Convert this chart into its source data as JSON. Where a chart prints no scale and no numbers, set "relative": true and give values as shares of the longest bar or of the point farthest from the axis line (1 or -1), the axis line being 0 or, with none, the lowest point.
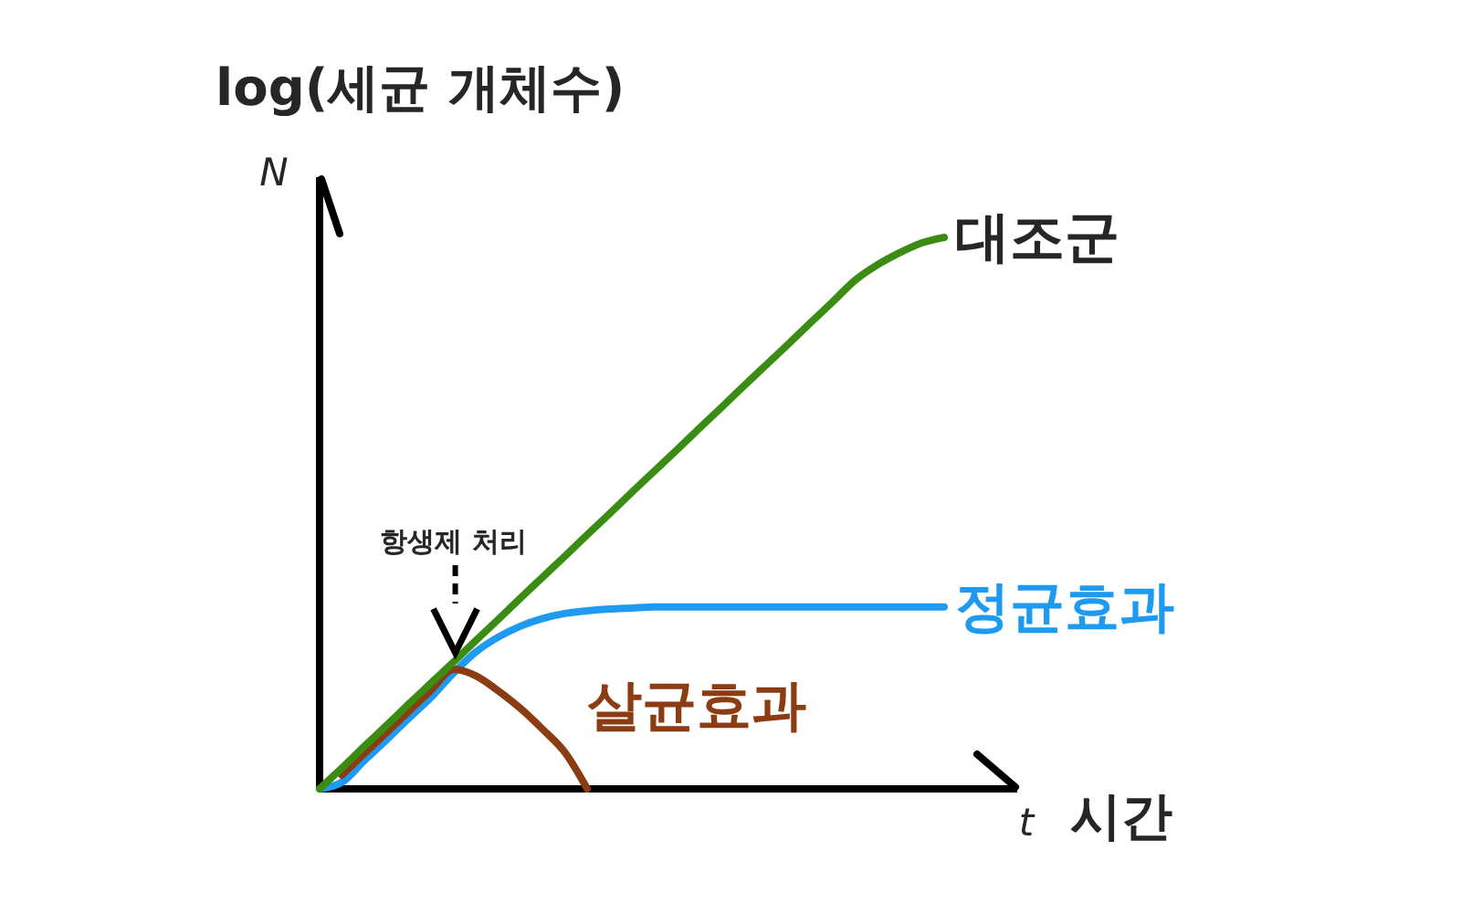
{
  "chart_data": {
    "type": "line",
    "relative": true,
    "ylabel": "log(세균 개체수)",
    "xlabel": "시간",
    "annotations": [
      "N",
      "t",
      "항생제 처리"
    ],
    "categories": [
      null,
      null,
      null,
      null,
      null,
      null,
      null,
      null,
      null,
      null,
      null,
      null,
      null,
      null,
      null,
      null,
      null,
      null,
      null,
      null,
      null,
      null,
      null,
      null,
      null,
      null,
      null,
      null,
      null
    ],
    "series": [
      {
        "name": "대조군",
        "color": "#3b8c12",
        "values": [
          0,
          0.038,
          0.077,
          0.115,
          0.154,
          0.192,
          0.23,
          0.269,
          0.307,
          0.346,
          0.384,
          0.422,
          0.461,
          0.499,
          0.538,
          0.576,
          0.614,
          0.653,
          0.691,
          0.73,
          0.768,
          0.806,
          0.845,
          0.883,
          0.922,
          0.95,
          0.972,
          0.99,
          1
        ]
      },
      {
        "name": "정균효과",
        "color": "#1e9bf0",
        "values": [
          0,
          0.012,
          0.051,
          0.089,
          0.128,
          0.166,
          0.21,
          0.248,
          0.275,
          0.295,
          0.309,
          0.318,
          0.323,
          0.326,
          0.328,
          0.33,
          0.33,
          0.33,
          0.33,
          0.33,
          0.33,
          0.33,
          0.33,
          0.33,
          0.33,
          0.33,
          0.33,
          0.33,
          0.33
        ]
      },
      {
        "name": "살균효과",
        "color": "#8b3c12",
        "values": [
          null,
          0.025,
          0.064,
          0.102,
          0.141,
          0.179,
          0.217,
          0.205,
          0.178,
          0.146,
          0.108,
          0.066,
          0,
          null,
          null,
          null,
          null,
          null,
          null,
          null,
          null,
          null,
          null,
          null,
          null,
          null,
          null,
          null,
          null
        ]
      }
    ],
    "tick_labels": false,
    "line_style": "solid"
  }
}
